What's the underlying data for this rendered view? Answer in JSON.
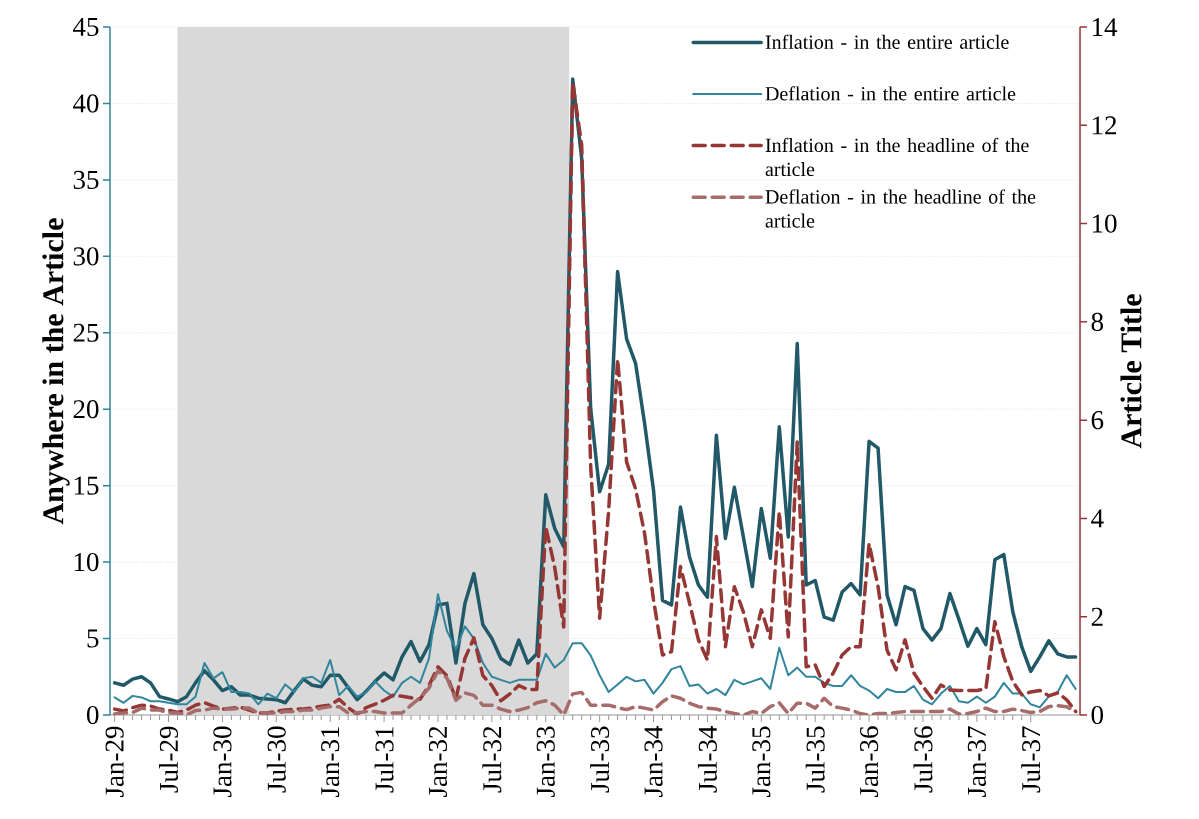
{
  "chart_data": {
    "type": "line",
    "ylabel": "Anywhere in the Article",
    "y2label": "Article Title",
    "x": [
      "1929-01",
      "1929-02",
      "1929-03",
      "1929-04",
      "1929-05",
      "1929-06",
      "1929-07",
      "1929-08",
      "1929-09",
      "1929-10",
      "1929-11",
      "1929-12",
      "1930-01",
      "1930-02",
      "1930-03",
      "1930-04",
      "1930-05",
      "1930-06",
      "1930-07",
      "1930-08",
      "1930-09",
      "1930-10",
      "1930-11",
      "1930-12",
      "1931-01",
      "1931-02",
      "1931-03",
      "1931-04",
      "1931-05",
      "1931-06",
      "1931-07",
      "1931-08",
      "1931-09",
      "1931-10",
      "1931-11",
      "1931-12",
      "1932-01",
      "1932-02",
      "1932-03",
      "1932-04",
      "1932-05",
      "1932-06",
      "1932-07",
      "1932-08",
      "1932-09",
      "1932-10",
      "1932-11",
      "1932-12",
      "1933-01",
      "1933-02",
      "1933-03",
      "1933-04",
      "1933-05",
      "1933-06",
      "1933-07",
      "1933-08",
      "1933-09",
      "1933-10",
      "1933-11",
      "1933-12",
      "1934-01",
      "1934-02",
      "1934-03",
      "1934-04",
      "1934-05",
      "1934-06",
      "1934-07",
      "1934-08",
      "1934-09",
      "1934-10",
      "1934-11",
      "1934-12",
      "1935-01",
      "1935-02",
      "1935-03",
      "1935-04",
      "1935-05",
      "1935-06",
      "1935-07",
      "1935-08",
      "1935-09",
      "1935-10",
      "1935-11",
      "1935-12",
      "1936-01",
      "1936-02",
      "1936-03",
      "1936-04",
      "1936-05",
      "1936-06",
      "1936-07",
      "1936-08",
      "1936-09",
      "1936-10",
      "1936-11",
      "1936-12",
      "1937-01",
      "1937-02",
      "1937-03",
      "1937-04",
      "1937-05",
      "1937-06",
      "1937-07",
      "1937-08",
      "1937-09",
      "1937-10",
      "1937-11",
      "1937-12"
    ],
    "xlim": [
      "1928-12-16",
      "1937-12-16"
    ],
    "xticks": [
      {
        "value": "1929-01",
        "label": "Jan-29"
      },
      {
        "value": "1929-07",
        "label": "Jul-29"
      },
      {
        "value": "1930-01",
        "label": "Jan-30"
      },
      {
        "value": "1930-07",
        "label": "Jul-30"
      },
      {
        "value": "1931-01",
        "label": "Jan-31"
      },
      {
        "value": "1931-07",
        "label": "Jul-31"
      },
      {
        "value": "1932-01",
        "label": "Jan-32"
      },
      {
        "value": "1932-07",
        "label": "Jul-32"
      },
      {
        "value": "1933-01",
        "label": "Jan-33"
      },
      {
        "value": "1933-07",
        "label": "Jul-33"
      },
      {
        "value": "1934-01",
        "label": "Jan-34"
      },
      {
        "value": "1934-07",
        "label": "Jul-34"
      },
      {
        "value": "1935-01",
        "label": "Jan-35"
      },
      {
        "value": "1935-07",
        "label": "Jul-35"
      },
      {
        "value": "1936-01",
        "label": "Jan-36"
      },
      {
        "value": "1936-07",
        "label": "Jul-36"
      },
      {
        "value": "1937-01",
        "label": "Jan-37"
      },
      {
        "value": "1937-07",
        "label": "Jul-37"
      }
    ],
    "ylim": [
      0,
      45
    ],
    "yticks": [
      0,
      5,
      10,
      15,
      20,
      25,
      30,
      35,
      40,
      45
    ],
    "y2lim": [
      0,
      14
    ],
    "y2ticks": [
      0,
      2,
      4,
      6,
      8,
      10,
      12,
      14
    ],
    "grid": "y",
    "legend": "top right",
    "bands": [
      {
        "axis": "x",
        "from": "1929-08",
        "to": "1933-03-20",
        "color": "#d9d9d9"
      }
    ],
    "series": [
      {
        "name": "Inflation - in the entire article",
        "color": "#215968",
        "values": [
          2.1,
          1.95,
          2.35,
          2.5,
          2.1,
          1.2,
          1.05,
          0.87,
          1.2,
          2.1,
          2.9,
          2.3,
          1.6,
          1.85,
          1.3,
          1.3,
          1.1,
          1.05,
          1.0,
          0.8,
          1.6,
          2.35,
          1.95,
          1.85,
          2.6,
          2.6,
          1.8,
          1.0,
          1.55,
          2.2,
          2.75,
          2.3,
          3.8,
          4.8,
          3.5,
          4.6,
          7.2,
          7.3,
          3.4,
          7.3,
          9.25,
          5.9,
          5.0,
          3.7,
          3.3,
          4.9,
          3.4,
          4.0,
          14.4,
          12.2,
          11.0,
          41.6,
          36.4,
          20.05,
          14.6,
          16.4,
          29.0,
          24.6,
          23.0,
          19.1,
          14.7,
          7.5,
          7.2,
          13.6,
          10.35,
          8.5,
          7.7,
          18.3,
          11.55,
          14.9,
          11.65,
          8.4,
          13.5,
          10.25,
          18.85,
          11.65,
          24.3,
          8.5,
          8.8,
          6.4,
          6.2,
          8.05,
          8.6,
          7.85,
          17.9,
          17.45,
          7.85,
          5.9,
          8.4,
          8.15,
          5.65,
          4.9,
          5.65,
          7.95,
          6.25,
          4.5,
          5.65,
          4.6,
          10.15,
          10.5,
          6.75,
          4.45,
          2.85,
          3.8,
          4.85,
          4.0,
          3.8,
          3.8
        ]
      },
      {
        "name": "Deflation - in the entire article",
        "color": "#31859c",
        "values": [
          1.15,
          0.8,
          1.25,
          1.15,
          0.9,
          0.9,
          0.8,
          0.7,
          0.7,
          1.2,
          3.4,
          2.4,
          2.8,
          1.5,
          1.5,
          1.4,
          0.7,
          1.4,
          1.1,
          2.0,
          1.5,
          2.4,
          2.5,
          2.1,
          3.6,
          1.3,
          1.9,
          1.2,
          1.5,
          2.2,
          1.6,
          1.2,
          2.1,
          2.5,
          2.1,
          3.7,
          7.9,
          5.5,
          4.3,
          5.8,
          5.0,
          3.4,
          2.5,
          2.3,
          2.1,
          2.3,
          2.3,
          2.3,
          4.0,
          3.1,
          3.6,
          4.7,
          4.7,
          3.9,
          2.6,
          1.5,
          2.0,
          2.5,
          2.2,
          2.3,
          1.4,
          2.1,
          3.0,
          3.2,
          1.9,
          2.0,
          1.4,
          1.7,
          1.3,
          2.3,
          2.0,
          2.2,
          2.4,
          1.7,
          4.4,
          2.6,
          3.1,
          2.5,
          2.5,
          2.1,
          1.9,
          1.9,
          2.6,
          1.9,
          1.6,
          1.1,
          1.7,
          1.5,
          1.5,
          1.9,
          1.0,
          0.7,
          1.4,
          1.9,
          0.9,
          0.8,
          1.2,
          0.8,
          1.2,
          2.1,
          1.4,
          1.4,
          0.7,
          0.5,
          1.2,
          1.5,
          2.6,
          1.7
        ]
      },
      {
        "name": "Inflation - in the headline of the article",
        "color": "#953735",
        "axis": "y2",
        "line_style": "dashed",
        "values": [
          0.12,
          0.08,
          0.15,
          0.2,
          0.18,
          0.12,
          0.1,
          0.05,
          0.1,
          0.2,
          0.25,
          0.18,
          0.12,
          0.14,
          0.16,
          0.1,
          0.04,
          0.04,
          0.08,
          0.1,
          0.12,
          0.12,
          0.14,
          0.18,
          0.2,
          0.32,
          0.15,
          0.02,
          0.15,
          0.22,
          0.3,
          0.4,
          0.38,
          0.35,
          0.32,
          0.6,
          0.98,
          0.8,
          0.33,
          1.15,
          1.57,
          0.8,
          0.6,
          0.29,
          0.43,
          0.6,
          0.52,
          0.52,
          3.83,
          3.0,
          1.79,
          12.87,
          11.6,
          5.07,
          1.97,
          4.15,
          7.24,
          5.15,
          4.6,
          3.7,
          2.34,
          1.22,
          1.29,
          3.02,
          2.28,
          1.53,
          1.12,
          3.63,
          1.39,
          2.61,
          2.1,
          1.39,
          2.14,
          1.56,
          4.14,
          1.59,
          5.56,
          0.98,
          1.02,
          0.58,
          0.85,
          1.22,
          1.39,
          1.39,
          3.49,
          2.61,
          1.32,
          0.92,
          1.53,
          0.85,
          0.58,
          0.34,
          0.61,
          0.51,
          0.5,
          0.5,
          0.5,
          0.53,
          1.9,
          1.19,
          0.68,
          0.41,
          0.47,
          0.5,
          0.39,
          0.45,
          0.31,
          0.07
        ]
      },
      {
        "name": "Deflation - in the headline of the article",
        "color": "#a66b6b",
        "axis": "y2",
        "line_style": "dashed",
        "values": [
          0.02,
          0.04,
          0.05,
          0.14,
          0.1,
          0.1,
          0.04,
          0.04,
          0.0,
          0.09,
          0.1,
          0.14,
          0.12,
          0.12,
          0.14,
          0.14,
          0.04,
          0.04,
          0.04,
          0.07,
          0.07,
          0.1,
          0.1,
          0.14,
          0.17,
          0.17,
          0.04,
          0.04,
          0.07,
          0.07,
          0.04,
          0.04,
          0.04,
          0.2,
          0.35,
          0.55,
          0.9,
          0.75,
          0.3,
          0.45,
          0.4,
          0.2,
          0.2,
          0.12,
          0.07,
          0.1,
          0.15,
          0.25,
          0.29,
          0.2,
          0.0,
          0.43,
          0.46,
          0.2,
          0.2,
          0.2,
          0.15,
          0.11,
          0.17,
          0.14,
          0.1,
          0.27,
          0.39,
          0.34,
          0.24,
          0.17,
          0.14,
          0.12,
          0.07,
          0.03,
          0.0,
          0.07,
          0.03,
          0.17,
          0.25,
          0.03,
          0.24,
          0.24,
          0.14,
          0.34,
          0.17,
          0.14,
          0.1,
          0.03,
          0.0,
          0.03,
          0.03,
          0.05,
          0.07,
          0.07,
          0.07,
          0.07,
          0.07,
          0.12,
          0.02,
          0.03,
          0.07,
          0.14,
          0.07,
          0.07,
          0.12,
          0.09,
          0.05,
          0.07,
          0.17,
          0.19,
          0.17,
          0.07
        ]
      }
    ]
  }
}
